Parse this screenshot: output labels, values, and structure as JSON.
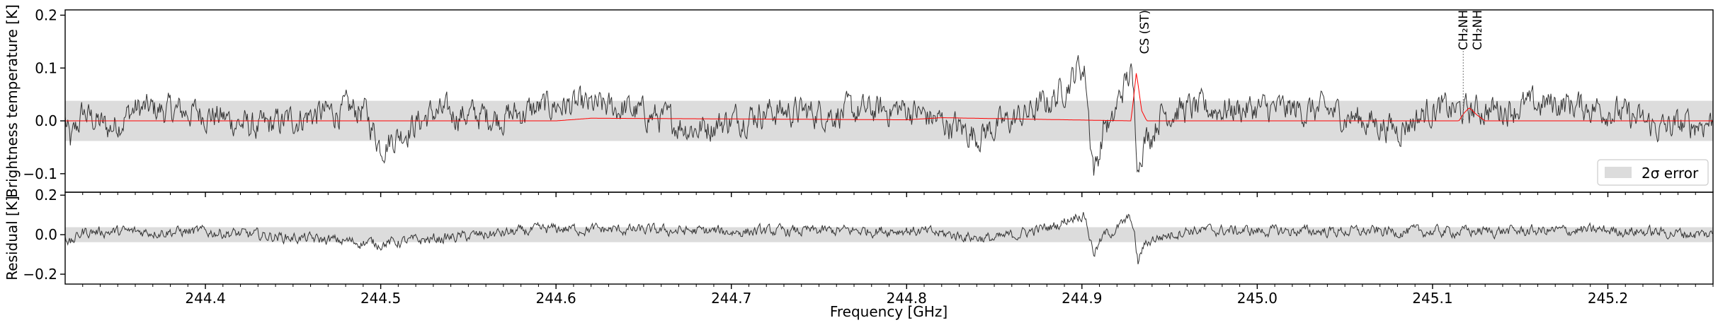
{
  "figure": {
    "ylabel_top": "Brightness temperature [K]",
    "ylabel_bottom": "Residual [K]",
    "xlabel": "Frequency [GHz]"
  },
  "legend": {
    "label": "2σ error",
    "placement": "lower-right"
  },
  "line_labels": [
    {
      "text": "CS (ST)",
      "freq": 244.9356,
      "marker": false
    },
    {
      "text": "CH₂NH",
      "freq": 245.1175,
      "marker": true
    },
    {
      "text": "CH₂NH",
      "freq": 245.1255,
      "marker": false
    }
  ],
  "colors": {
    "observed": "#333333",
    "model": "#ff0000",
    "error_band": "#dcdcdc",
    "marker": "#777777"
  },
  "chart_data": [
    {
      "type": "line",
      "panel": "spectrum",
      "xlabel": "",
      "ylabel": "Brightness temperature [K]",
      "xlim": [
        244.32,
        245.26
      ],
      "ylim": [
        -0.135,
        0.21
      ],
      "yticks": [
        -0.1,
        0.0,
        0.1,
        0.2
      ],
      "ytick_labels": [
        "−0.1",
        "0.0",
        "0.1",
        "0.2"
      ],
      "error_band": [
        -0.038,
        0.038
      ],
      "series": [
        {
          "role": "observed",
          "points": [
            [
              244.32,
              0.002
            ],
            [
              244.323,
              -0.06
            ],
            [
              244.33,
              0.02
            ],
            [
              244.345,
              -0.02
            ],
            [
              244.36,
              0.03
            ],
            [
              244.4,
              0.02
            ],
            [
              244.43,
              -0.02
            ],
            [
              244.46,
              0.015
            ],
            [
              244.49,
              0.03
            ],
            [
              244.5,
              -0.062
            ],
            [
              244.53,
              0.02
            ],
            [
              244.57,
              0.01
            ],
            [
              244.6,
              0.04
            ],
            [
              244.64,
              0.03
            ],
            [
              244.68,
              -0.02
            ],
            [
              244.72,
              0.025
            ],
            [
              244.76,
              0.02
            ],
            [
              244.8,
              0.03
            ],
            [
              244.84,
              -0.035
            ],
            [
              244.87,
              0.02
            ],
            [
              244.885,
              0.06
            ],
            [
              244.895,
              0.11
            ],
            [
              244.898,
              0.14
            ],
            [
              244.902,
              0.12
            ],
            [
              244.905,
              -0.05
            ],
            [
              244.907,
              -0.125
            ],
            [
              244.91,
              -0.08
            ],
            [
              244.913,
              0.0
            ],
            [
              244.917,
              -0.02
            ],
            [
              244.92,
              0.04
            ],
            [
              244.925,
              0.1
            ],
            [
              244.928,
              0.12
            ],
            [
              244.93,
              0.03
            ],
            [
              244.932,
              -0.11
            ],
            [
              244.935,
              -0.05
            ],
            [
              244.94,
              -0.03
            ],
            [
              244.945,
              0.02
            ],
            [
              244.96,
              0.03
            ],
            [
              245.0,
              0.03
            ],
            [
              245.04,
              0.025
            ],
            [
              245.08,
              -0.02
            ],
            [
              245.1,
              0.03
            ],
            [
              245.12,
              0.025
            ],
            [
              245.14,
              0.03
            ],
            [
              245.17,
              0.045
            ],
            [
              245.2,
              0.03
            ],
            [
              245.23,
              -0.02
            ],
            [
              245.26,
              0.0
            ]
          ]
        },
        {
          "role": "model",
          "points": [
            [
              244.32,
              0.0
            ],
            [
              244.6,
              0.0
            ],
            [
              244.62,
              0.005
            ],
            [
              244.8,
              0.002
            ],
            [
              244.82,
              0.006
            ],
            [
              244.928,
              0.0
            ],
            [
              244.93,
              0.06
            ],
            [
              244.931,
              0.09
            ],
            [
              244.932,
              0.07
            ],
            [
              244.934,
              0.02
            ],
            [
              244.937,
              0.0
            ],
            [
              245.115,
              0.0
            ],
            [
              245.118,
              0.015
            ],
            [
              245.121,
              0.025
            ],
            [
              245.125,
              0.012
            ],
            [
              245.13,
              0.0
            ],
            [
              245.26,
              0.0
            ]
          ]
        }
      ]
    },
    {
      "type": "line",
      "panel": "residual",
      "xlabel": "Frequency [GHz]",
      "ylabel": "Residual [K]",
      "xlim": [
        244.32,
        245.26
      ],
      "ylim": [
        -0.25,
        0.215
      ],
      "yticks": [
        -0.2,
        0.0,
        0.2
      ],
      "ytick_labels": [
        "−0.2",
        "0.0",
        "0.2"
      ],
      "xticks": [
        244.4,
        244.5,
        244.6,
        244.7,
        244.8,
        244.9,
        245.0,
        245.1,
        245.2
      ],
      "xtick_labels": [
        "244.4",
        "244.5",
        "244.6",
        "244.7",
        "244.8",
        "244.9",
        "245.0",
        "245.1",
        "245.2"
      ],
      "error_band": [
        -0.038,
        0.038
      ],
      "series": [
        {
          "role": "residual",
          "points": [
            [
              244.32,
              0.002
            ],
            [
              244.323,
              -0.06
            ],
            [
              244.33,
              0.02
            ],
            [
              244.4,
              0.02
            ],
            [
              244.5,
              -0.06
            ],
            [
              244.6,
              0.04
            ],
            [
              244.7,
              0.02
            ],
            [
              244.8,
              0.03
            ],
            [
              244.85,
              -0.03
            ],
            [
              244.885,
              0.06
            ],
            [
              244.898,
              0.14
            ],
            [
              244.902,
              0.12
            ],
            [
              244.905,
              -0.05
            ],
            [
              244.907,
              -0.12
            ],
            [
              244.913,
              0.0
            ],
            [
              244.92,
              0.04
            ],
            [
              244.928,
              0.12
            ],
            [
              244.93,
              -0.02
            ],
            [
              244.932,
              -0.19
            ],
            [
              244.935,
              -0.08
            ],
            [
              244.94,
              -0.03
            ],
            [
              244.96,
              0.03
            ],
            [
              245.0,
              0.025
            ],
            [
              245.1,
              0.02
            ],
            [
              245.2,
              0.03
            ],
            [
              245.26,
              0.0
            ]
          ]
        }
      ]
    }
  ]
}
